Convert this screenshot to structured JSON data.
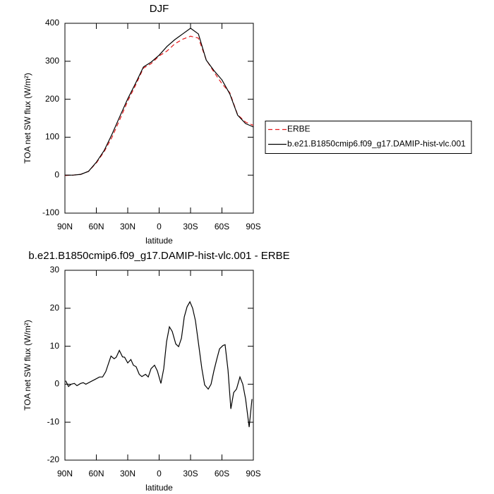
{
  "chart_data": [
    {
      "type": "line",
      "title": "DJF",
      "xlabel": "latitude",
      "ylabel": "TOA net SW flux (W/m²)",
      "x": [
        90,
        82.5,
        75,
        67.5,
        60,
        52.5,
        45,
        37.5,
        30,
        22.5,
        15,
        7.5,
        0,
        -7.5,
        -15,
        -22.5,
        -30,
        -37.5,
        -45,
        -52.5,
        -60,
        -67.5,
        -75,
        -82.5,
        -90
      ],
      "series": [
        {
          "name": "ERBE",
          "color": "#e41a1c",
          "dashed": true,
          "values": [
            -1,
            0,
            2,
            10,
            32,
            62,
            100,
            147,
            195,
            237,
            282,
            294,
            314,
            327,
            346,
            358,
            366,
            361,
            304,
            271,
            241,
            217,
            159,
            140,
            131
          ]
        },
        {
          "name": "b.e21.B1850cmip6.f09_g17.DAMIP-hist-vlc.001",
          "color": "#000000",
          "dashed": false,
          "values": [
            0,
            0,
            2,
            10,
            34,
            65,
            108,
            155,
            201,
            242,
            285,
            298,
            316,
            339,
            357,
            372,
            387,
            372,
            303,
            275,
            251,
            214,
            158,
            136,
            127
          ]
        }
      ],
      "xlim": [
        90,
        -90
      ],
      "xticks": [
        {
          "value": 90,
          "label": "90N"
        },
        {
          "value": 60,
          "label": "60N"
        },
        {
          "value": 30,
          "label": "30N"
        },
        0,
        {
          "value": -30,
          "label": "30S"
        },
        {
          "value": -60,
          "label": "60S"
        },
        {
          "value": -90,
          "label": "90S"
        }
      ],
      "ylim": [
        -100,
        400
      ],
      "yticks": [
        -100,
        0,
        100,
        200,
        300,
        400
      ],
      "legend": "right"
    },
    {
      "type": "line",
      "title": "b.e21.B1850cmip6.f09_g17.DAMIP-hist-vlc.001 - ERBE",
      "xlabel": "latitude",
      "ylabel": "TOA net SW flux (W/m²)",
      "x": [
        89.3,
        86.6,
        84,
        81,
        78.5,
        75,
        72.5,
        70,
        61,
        57,
        54,
        51,
        46,
        43,
        41,
        38,
        35,
        33,
        30,
        27,
        24.6,
        22,
        19,
        16.5,
        13,
        10.4,
        7.7,
        4.4,
        1.7,
        -1.7,
        -4.4,
        -7.1,
        -9.8,
        -12.5,
        -15.9,
        -18.6,
        -21.3,
        -24,
        -26.7,
        -29.4,
        -32,
        -34.7,
        -38,
        -40.8,
        -43.5,
        -46.9,
        -49.6,
        -52.3,
        -55,
        -57.7,
        -61,
        -63,
        -65.8,
        -68.5,
        -71.2,
        -73.9,
        -77.2,
        -79.9,
        -82.6,
        -86,
        -88.7
      ],
      "series": [
        {
          "color": "#000000",
          "dashed": false,
          "values": [
            0.9,
            -0.6,
            0,
            0.2,
            -0.4,
            0.2,
            0.4,
            0,
            1.3,
            1.9,
            1.9,
            3.3,
            7.4,
            6.7,
            7.1,
            8.9,
            7.2,
            7.1,
            5.6,
            6.5,
            5,
            4.6,
            2.6,
            2,
            2.6,
            1.9,
            4.1,
            5,
            3.5,
            0.2,
            4.1,
            11.2,
            15.1,
            13.9,
            10.6,
            9.9,
            12.1,
            17.7,
            20.4,
            21.7,
            20,
            16.7,
            9.9,
            4.1,
            -0.2,
            -1.3,
            0,
            3.5,
            6.5,
            9.3,
            10.2,
            10.4,
            3.7,
            -6.5,
            -2.2,
            -1.3,
            1.9,
            0,
            -3.9,
            -11.3,
            -3.9
          ]
        }
      ],
      "xlim": [
        90,
        -90
      ],
      "xticks": [
        {
          "value": 90,
          "label": "90N"
        },
        {
          "value": 60,
          "label": "60N"
        },
        {
          "value": 30,
          "label": "30N"
        },
        0,
        {
          "value": -30,
          "label": "30S"
        },
        {
          "value": -60,
          "label": "60S"
        },
        {
          "value": -90,
          "label": "90S"
        }
      ],
      "ylim": [
        -20,
        30
      ],
      "yticks": [
        -20,
        -10,
        0,
        10,
        20,
        30
      ]
    }
  ]
}
